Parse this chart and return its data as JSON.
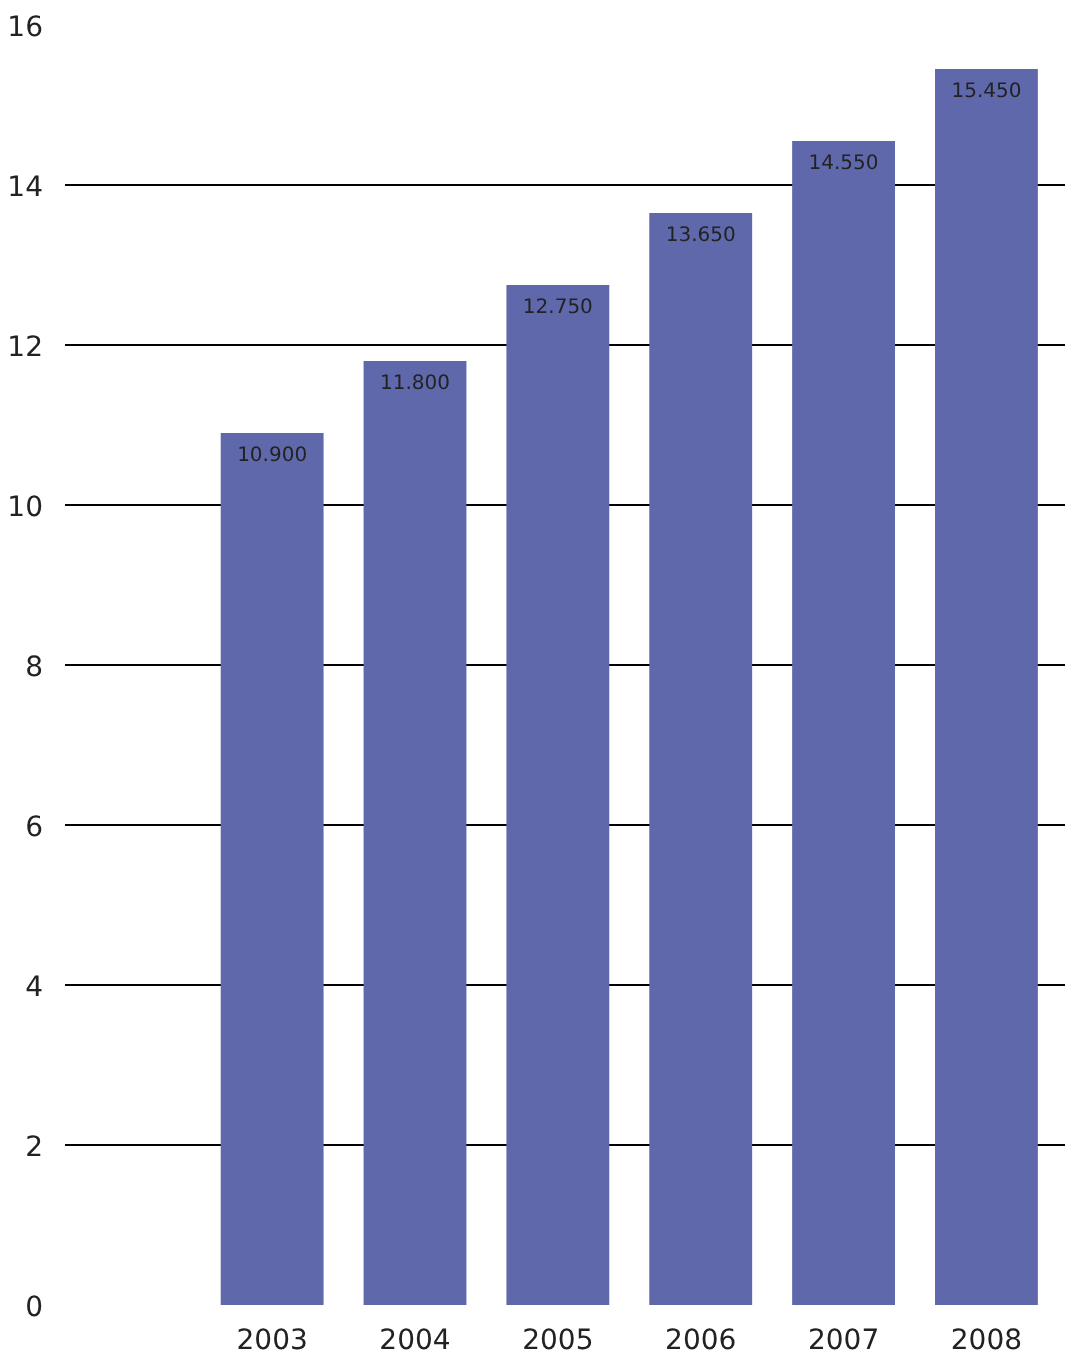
{
  "chart_data": {
    "type": "bar",
    "categories": [
      "2003",
      "2004",
      "2005",
      "2006",
      "2007",
      "2008"
    ],
    "values": [
      10.9,
      11.8,
      12.75,
      13.65,
      14.55,
      15.45
    ],
    "value_labels": [
      "10.900",
      "11.800",
      "12.750",
      "13.650",
      "14.550",
      "15.450"
    ],
    "color": "#5f68aa",
    "ylim": [
      0,
      16
    ],
    "yticks": [
      0,
      2,
      4,
      6,
      8,
      10,
      12,
      14,
      16
    ],
    "grid": "y"
  }
}
